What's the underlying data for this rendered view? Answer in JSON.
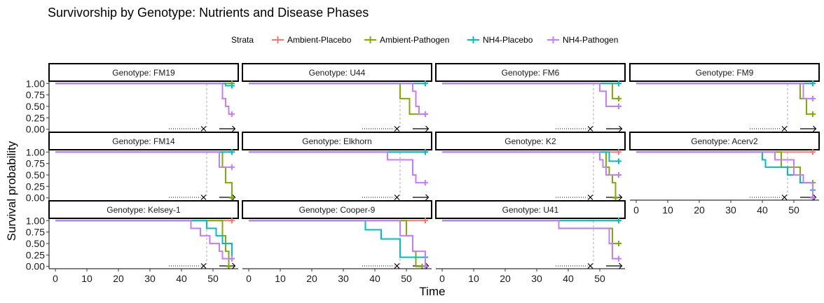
{
  "chart_data": {
    "type": "line",
    "title": "Survivorship by Genotype: Nutrients and Disease Phases",
    "xlabel": "Time",
    "ylabel": "Survival probability",
    "legend": {
      "title": "Strata",
      "placement": "top",
      "entries": [
        {
          "name": "Ambient-Placebo",
          "color": "#F8766D"
        },
        {
          "name": "Ambient-Pathogen",
          "color": "#7CAE00"
        },
        {
          "name": "NH4-Placebo",
          "color": "#00BFC4"
        },
        {
          "name": "NH4-Pathogen",
          "color": "#C77CFF"
        }
      ]
    },
    "xlim": [
      -2,
      58
    ],
    "ylim": [
      -0.05,
      1.05
    ],
    "x_ticks": [
      0,
      10,
      20,
      30,
      40,
      50
    ],
    "y_ticks": [
      0.0,
      0.25,
      0.5,
      0.75,
      1.0
    ],
    "y_tick_labels": [
      "0.00",
      "0.25",
      "0.50",
      "0.75",
      "1.00"
    ],
    "vline_x": 48,
    "phase_markers": {
      "dotted_start": 36,
      "cross_x": 47,
      "solid_start": 52,
      "arrow_end": 57
    },
    "panels": [
      {
        "label": "Genotype: FM19",
        "series": [
          {
            "name": "Ambient-Placebo",
            "x": [
              0,
              56
            ],
            "y": [
              1,
              1
            ]
          },
          {
            "name": "Ambient-Pathogen",
            "x": [
              0,
              56
            ],
            "y": [
              1,
              1
            ]
          },
          {
            "name": "NH4-Placebo",
            "x": [
              0,
              54,
              56
            ],
            "y": [
              1,
              0.95,
              0.95
            ]
          },
          {
            "name": "NH4-Pathogen",
            "x": [
              0,
              53,
              54,
              55,
              56
            ],
            "y": [
              1,
              0.67,
              0.5,
              0.33,
              0.33
            ]
          }
        ]
      },
      {
        "label": "Genotype: U44",
        "series": [
          {
            "name": "Ambient-Placebo",
            "x": [
              0,
              56
            ],
            "y": [
              1,
              1
            ]
          },
          {
            "name": "Ambient-Pathogen",
            "x": [
              0,
              48,
              51,
              56
            ],
            "y": [
              1,
              0.67,
              0.33,
              0.33
            ]
          },
          {
            "name": "NH4-Placebo",
            "x": [
              0,
              56
            ],
            "y": [
              1,
              1
            ]
          },
          {
            "name": "NH4-Pathogen",
            "x": [
              0,
              52,
              53,
              54,
              56
            ],
            "y": [
              1,
              0.83,
              0.5,
              0.33,
              0.33
            ]
          }
        ]
      },
      {
        "label": "Genotype: FM6",
        "series": [
          {
            "name": "Ambient-Placebo",
            "x": [
              0,
              56
            ],
            "y": [
              1,
              1
            ]
          },
          {
            "name": "Ambient-Pathogen",
            "x": [
              0,
              54,
              56
            ],
            "y": [
              1,
              0.67,
              0.67
            ]
          },
          {
            "name": "NH4-Placebo",
            "x": [
              0,
              56
            ],
            "y": [
              1,
              1
            ]
          },
          {
            "name": "NH4-Pathogen",
            "x": [
              0,
              50,
              52,
              54,
              56
            ],
            "y": [
              1,
              0.83,
              0.5,
              0.5,
              0.5
            ]
          }
        ]
      },
      {
        "label": "Genotype: FM9",
        "series": [
          {
            "name": "Ambient-Placebo",
            "x": [
              0,
              56
            ],
            "y": [
              1,
              1
            ]
          },
          {
            "name": "Ambient-Pathogen",
            "x": [
              0,
              52,
              54,
              56
            ],
            "y": [
              1,
              0.67,
              0.33,
              0.33
            ]
          },
          {
            "name": "NH4-Placebo",
            "x": [
              0,
              56
            ],
            "y": [
              1,
              1
            ]
          },
          {
            "name": "NH4-Pathogen",
            "x": [
              0,
              53,
              56
            ],
            "y": [
              1,
              0.67,
              0.67
            ]
          }
        ]
      },
      {
        "label": "Genotype: FM14",
        "series": [
          {
            "name": "Ambient-Placebo",
            "x": [
              0,
              56
            ],
            "y": [
              1,
              1
            ]
          },
          {
            "name": "Ambient-Pathogen",
            "x": [
              0,
              53,
              54,
              56
            ],
            "y": [
              1,
              0.67,
              0.33,
              0
            ]
          },
          {
            "name": "NH4-Placebo",
            "x": [
              0,
              56
            ],
            "y": [
              1,
              1
            ]
          },
          {
            "name": "NH4-Pathogen",
            "x": [
              0,
              52,
              56
            ],
            "y": [
              1,
              0.67,
              0.67
            ]
          }
        ]
      },
      {
        "label": "Genotype: Elkhorn",
        "series": [
          {
            "name": "Ambient-Placebo",
            "x": [
              0,
              56
            ],
            "y": [
              1,
              1
            ]
          },
          {
            "name": "Ambient-Pathogen",
            "x": [
              0,
              56
            ],
            "y": [
              1,
              1
            ]
          },
          {
            "name": "NH4-Placebo",
            "x": [
              0,
              56
            ],
            "y": [
              1,
              1
            ]
          },
          {
            "name": "NH4-Pathogen",
            "x": [
              0,
              44,
              52,
              53,
              56
            ],
            "y": [
              1,
              0.83,
              0.5,
              0.33,
              0.33
            ]
          }
        ]
      },
      {
        "label": "Genotype: K2",
        "series": [
          {
            "name": "Ambient-Placebo",
            "x": [
              0,
              56
            ],
            "y": [
              1,
              1
            ]
          },
          {
            "name": "Ambient-Pathogen",
            "x": [
              0,
              52,
              53,
              54,
              55
            ],
            "y": [
              1,
              0.67,
              0.5,
              0.33,
              0
            ]
          },
          {
            "name": "NH4-Placebo",
            "x": [
              0,
              53,
              56
            ],
            "y": [
              1,
              0.8,
              0.8
            ]
          },
          {
            "name": "NH4-Pathogen",
            "x": [
              0,
              50,
              51,
              52,
              56
            ],
            "y": [
              1,
              0.83,
              0.67,
              0.5,
              0.5
            ]
          }
        ]
      },
      {
        "label": "Genotype: Acerv2",
        "series": [
          {
            "name": "Ambient-Placebo",
            "x": [
              0,
              56
            ],
            "y": [
              1,
              1
            ]
          },
          {
            "name": "Ambient-Pathogen",
            "x": [
              0,
              46,
              52,
              56
            ],
            "y": [
              1,
              0.67,
              0.33,
              0.33
            ]
          },
          {
            "name": "NH4-Placebo",
            "x": [
              0,
              40,
              41,
              48,
              52,
              56
            ],
            "y": [
              1,
              0.83,
              0.67,
              0.5,
              0.33,
              0.17
            ]
          },
          {
            "name": "NH4-Pathogen",
            "x": [
              0,
              44,
              50,
              53,
              56
            ],
            "y": [
              1,
              0.83,
              0.5,
              0.33,
              0
            ]
          }
        ]
      },
      {
        "label": "Genotype: Kelsey-1",
        "series": [
          {
            "name": "Ambient-Placebo",
            "x": [
              0,
              56
            ],
            "y": [
              1,
              1
            ]
          },
          {
            "name": "Ambient-Pathogen",
            "x": [
              0,
              53,
              54,
              55
            ],
            "y": [
              1,
              0.67,
              0.33,
              0
            ]
          },
          {
            "name": "NH4-Placebo",
            "x": [
              0,
              48,
              51,
              53,
              56
            ],
            "y": [
              1,
              0.83,
              0.67,
              0.5,
              0.17
            ]
          },
          {
            "name": "NH4-Pathogen",
            "x": [
              0,
              43,
              46,
              49,
              52,
              53,
              56
            ],
            "y": [
              1,
              0.83,
              0.67,
              0.5,
              0.33,
              0.17,
              0.17
            ]
          }
        ]
      },
      {
        "label": "Genotype: Cooper-9",
        "series": [
          {
            "name": "Ambient-Placebo",
            "x": [
              0,
              56
            ],
            "y": [
              1,
              1
            ]
          },
          {
            "name": "Ambient-Pathogen",
            "x": [
              0,
              50,
              52,
              53,
              55
            ],
            "y": [
              1,
              0.67,
              0.33,
              0,
              0
            ]
          },
          {
            "name": "NH4-Placebo",
            "x": [
              0,
              37,
              42,
              48,
              56
            ],
            "y": [
              1,
              0.8,
              0.6,
              0.2,
              0.2
            ]
          },
          {
            "name": "NH4-Pathogen",
            "x": [
              0,
              48,
              52,
              56
            ],
            "y": [
              1,
              0.67,
              0.33,
              0
            ]
          }
        ]
      },
      {
        "label": "Genotype: U41",
        "series": [
          {
            "name": "Ambient-Placebo",
            "x": [
              0,
              56
            ],
            "y": [
              1,
              1
            ]
          },
          {
            "name": "Ambient-Pathogen",
            "x": [
              0,
              37,
              54,
              56
            ],
            "y": [
              1,
              0.83,
              0.5,
              0.5
            ]
          },
          {
            "name": "NH4-Placebo",
            "x": [
              0,
              56
            ],
            "y": [
              1,
              1
            ]
          },
          {
            "name": "NH4-Pathogen",
            "x": [
              0,
              37,
              53,
              54,
              56
            ],
            "y": [
              1,
              0.83,
              0.5,
              0.17,
              0.17
            ]
          }
        ]
      }
    ]
  }
}
